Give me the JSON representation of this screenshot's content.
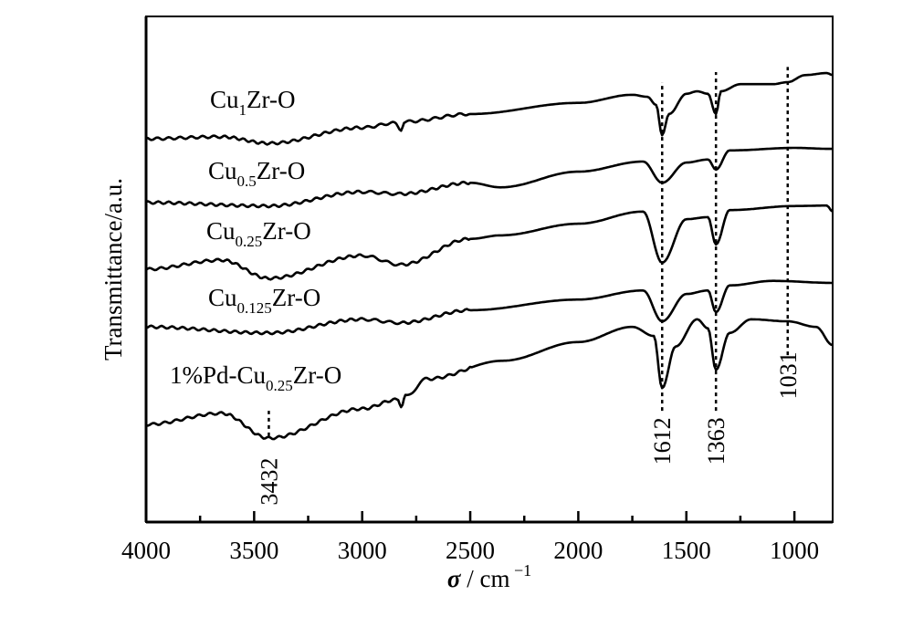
{
  "chart_data": {
    "type": "line",
    "title": "",
    "xlabel": "σ / cm⁻¹",
    "xlabel_symbol": "σ",
    "xlabel_unit": " / cm",
    "xlabel_exp": "−1",
    "ylabel": "Transmittance/a.u.",
    "xlim": [
      4000,
      823
    ],
    "ylim": [
      0,
      100
    ],
    "x_reversed": true,
    "grid": false,
    "xticks": [
      4000,
      3500,
      3000,
      2500,
      2000,
      1500,
      1000
    ],
    "xtick_labels": [
      "4000",
      "3500",
      "3000",
      "2500",
      "2000",
      "1500",
      "1000"
    ],
    "minor_xticks": [
      3750,
      3250,
      2750,
      2250,
      1750,
      1250
    ],
    "series": [
      {
        "name": "Cu1Zr-O",
        "label_main": "Cu",
        "label_sub": "1",
        "label_rest": "Zr-O",
        "x": [
          4000,
          3650,
          3432,
          3000,
          2850,
          2820,
          2800,
          2500,
          2000,
          1750,
          1680,
          1640,
          1612,
          1580,
          1500,
          1450,
          1400,
          1363,
          1340,
          1250,
          1100,
          1031,
          950,
          850,
          823
        ],
        "y": [
          75.8,
          76.2,
          74.9,
          78.0,
          78.9,
          77.4,
          79.2,
          80.7,
          82.9,
          84.5,
          84.1,
          82.5,
          76.5,
          80.7,
          84.7,
          85.2,
          84.7,
          80.7,
          85.2,
          86.6,
          86.6,
          87.0,
          88.4,
          88.8,
          88.4
        ]
      },
      {
        "name": "Cu0.5Zr-O",
        "label_main": "Cu",
        "label_sub": "0.5",
        "label_rest": "Zr-O",
        "x": [
          4000,
          3432,
          3000,
          2820,
          2500,
          2360,
          2000,
          1700,
          1612,
          1500,
          1400,
          1363,
          1300,
          1000,
          823
        ],
        "y": [
          63.2,
          62.5,
          65.3,
          64.9,
          67.1,
          66.2,
          69.3,
          71.3,
          67.1,
          71.1,
          71.7,
          69.7,
          73.5,
          74.0,
          73.8
        ]
      },
      {
        "name": "Cu0.25Zr-O",
        "label_main": "Cu",
        "label_sub": "0.25",
        "label_rest": "Zr-O",
        "x": [
          4000,
          3650,
          3432,
          3000,
          2820,
          2500,
          2360,
          2000,
          1700,
          1612,
          1500,
          1400,
          1363,
          1300,
          1000,
          850,
          823
        ],
        "y": [
          50.0,
          51.8,
          48.2,
          52.7,
          50.9,
          56.0,
          56.7,
          59.0,
          61.4,
          51.3,
          59.9,
          60.3,
          54.9,
          61.7,
          62.5,
          62.6,
          61.4
        ]
      },
      {
        "name": "Cu0.125Zr-O",
        "label_main": "Cu",
        "label_sub": "0.125",
        "label_rest": "Zr-O",
        "x": [
          4000,
          3432,
          3000,
          2820,
          2500,
          2000,
          1700,
          1612,
          1500,
          1400,
          1363,
          1300,
          1100,
          823
        ],
        "y": [
          38.6,
          37.4,
          40.1,
          39.4,
          41.9,
          44.0,
          45.8,
          39.7,
          45.1,
          45.8,
          41.5,
          46.8,
          47.7,
          47.3
        ]
      },
      {
        "name": "1%Pd-Cu0.25Zr-O",
        "label_main": "1%Pd-Cu",
        "label_sub": "0.25",
        "label_rest": "Zr-O",
        "x": [
          4000,
          3650,
          3432,
          3000,
          2840,
          2820,
          2800,
          2700,
          2350,
          2000,
          1750,
          1650,
          1612,
          1550,
          1450,
          1400,
          1363,
          1300,
          1200,
          1031,
          900,
          823
        ],
        "y": [
          19.3,
          21.5,
          16.6,
          22.4,
          24.2,
          22.9,
          24.9,
          28.3,
          31.9,
          35.6,
          38.6,
          36.8,
          26.5,
          34.7,
          40.1,
          38.3,
          30.1,
          37.4,
          40.1,
          39.7,
          38.6,
          35.0
        ]
      }
    ],
    "annotations": [
      {
        "text": "3432",
        "x": 3432,
        "line_from": 17.0,
        "line_to": 22.0,
        "text_at": 8
      },
      {
        "text": "1612",
        "x": 1612,
        "line_from": 22.0,
        "line_to": 87.0,
        "text_at": 16
      },
      {
        "text": "1363",
        "x": 1363,
        "line_from": 22.0,
        "line_to": 89.0,
        "text_at": 16
      },
      {
        "text": "1031",
        "x": 1031,
        "line_from": 33.0,
        "line_to": 90.0,
        "text_at": 29
      }
    ]
  }
}
